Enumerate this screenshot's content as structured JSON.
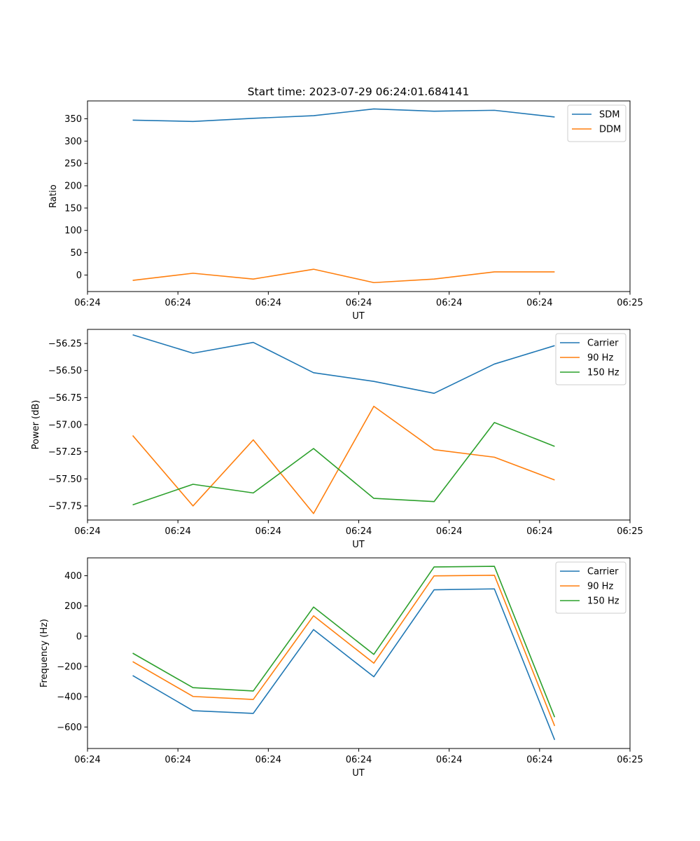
{
  "figure_title": "Start time: 2023-07-29 06:24:01.684141",
  "colors": {
    "blue": "#1f77b4",
    "orange": "#ff7f0e",
    "green": "#2ca02c"
  },
  "chart_data": [
    {
      "type": "line",
      "title": "Start time: 2023-07-29 06:24:01.684141",
      "xlabel": "UT",
      "ylabel": "Ratio",
      "xlim": [
        0,
        9
      ],
      "ylim": [
        -37,
        390
      ],
      "x": [
        0.75,
        1.75,
        2.75,
        3.75,
        4.75,
        5.75,
        6.75,
        7.75
      ],
      "xtick_values": [
        0,
        1.5,
        3,
        4.5,
        6,
        7.5,
        9
      ],
      "xtick_labels": [
        "06:24",
        "06:24",
        "06:24",
        "06:24",
        "06:24",
        "06:24",
        "06:25"
      ],
      "ytick_values": [
        350,
        300,
        250,
        200,
        150,
        100,
        50,
        0
      ],
      "ytick_labels": [
        "350",
        "300",
        "250",
        "200",
        "150",
        "100",
        "50",
        "0"
      ],
      "legend_position": "top-right",
      "series": [
        {
          "name": "SDM",
          "color": "#1f77b4",
          "values": [
            347,
            344,
            351,
            357,
            372,
            367,
            369,
            354
          ]
        },
        {
          "name": "DDM",
          "color": "#ff7f0e",
          "values": [
            -12,
            4,
            -9,
            13,
            -17,
            -9,
            7,
            7
          ]
        }
      ]
    },
    {
      "type": "line",
      "title": "",
      "xlabel": "UT",
      "ylabel": "Power (dB)",
      "xlim": [
        0,
        9
      ],
      "ylim": [
        -57.88,
        -56.12
      ],
      "x": [
        0.75,
        1.75,
        2.75,
        3.75,
        4.75,
        5.75,
        6.75,
        7.75
      ],
      "xtick_values": [
        0,
        1.5,
        3,
        4.5,
        6,
        7.5,
        9
      ],
      "xtick_labels": [
        "06:24",
        "06:24",
        "06:24",
        "06:24",
        "06:24",
        "06:24",
        "06:25"
      ],
      "ytick_values": [
        -56.25,
        -56.5,
        -56.75,
        -57.0,
        -57.25,
        -57.5,
        -57.75
      ],
      "ytick_labels": [
        "−56.25",
        "−56.50",
        "−56.75",
        "−57.00",
        "−57.25",
        "−57.50",
        "−57.75"
      ],
      "legend_position": "top-right",
      "series": [
        {
          "name": "Carrier",
          "color": "#1f77b4",
          "values": [
            -56.17,
            -56.34,
            -56.24,
            -56.52,
            -56.6,
            -56.71,
            -56.44,
            -56.27
          ]
        },
        {
          "name": "90 Hz",
          "color": "#ff7f0e",
          "values": [
            -57.1,
            -57.75,
            -57.14,
            -57.82,
            -56.83,
            -57.23,
            -57.3,
            -57.51
          ]
        },
        {
          "name": "150 Hz",
          "color": "#2ca02c",
          "values": [
            -57.74,
            -57.55,
            -57.63,
            -57.22,
            -57.68,
            -57.71,
            -56.98,
            -57.2
          ]
        }
      ]
    },
    {
      "type": "line",
      "title": "",
      "xlabel": "UT",
      "ylabel": "Frequency (Hz)",
      "xlim": [
        0,
        9
      ],
      "ylim": [
        -742,
        518
      ],
      "x": [
        0.75,
        1.75,
        2.75,
        3.75,
        4.75,
        5.75,
        6.75,
        7.75
      ],
      "xtick_values": [
        0,
        1.5,
        3,
        4.5,
        6,
        7.5,
        9
      ],
      "xtick_labels": [
        "06:24",
        "06:24",
        "06:24",
        "06:24",
        "06:24",
        "06:24",
        "06:25"
      ],
      "ytick_values": [
        400,
        200,
        0,
        -200,
        -400,
        -600
      ],
      "ytick_labels": [
        "400",
        "200",
        "0",
        "−200",
        "−400",
        "−600"
      ],
      "legend_position": "top-right",
      "series": [
        {
          "name": "Carrier",
          "color": "#1f77b4",
          "values": [
            -260,
            -492,
            -510,
            44,
            -268,
            307,
            313,
            -685
          ]
        },
        {
          "name": "90 Hz",
          "color": "#ff7f0e",
          "values": [
            -168,
            -398,
            -418,
            135,
            -178,
            399,
            403,
            -593
          ]
        },
        {
          "name": "150 Hz",
          "color": "#2ca02c",
          "values": [
            -112,
            -340,
            -362,
            193,
            -120,
            458,
            462,
            -535
          ]
        }
      ]
    }
  ]
}
